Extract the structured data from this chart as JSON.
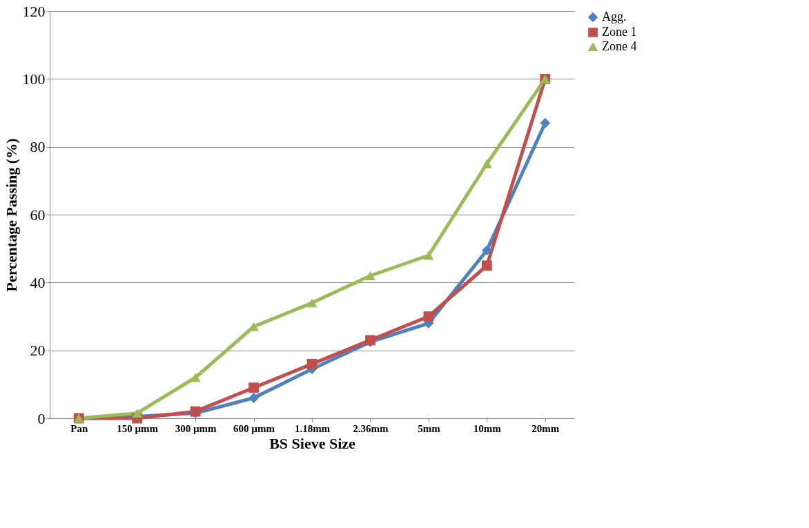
{
  "chart_data": {
    "type": "line",
    "xlabel": "BS Sieve Size",
    "ylabel": "Percentage Passing (%)",
    "categories": [
      "Pan",
      "150 µmm",
      "300 µmm",
      "600 µmm",
      "1.18mm",
      "2.36mm",
      "5mm",
      "10mm",
      "20mm"
    ],
    "series": [
      {
        "name": "Agg.",
        "color": "#4f81bd",
        "marker": "diamond",
        "values": [
          0,
          0.5,
          1.5,
          6,
          14.5,
          22.5,
          28,
          49.5,
          87
        ]
      },
      {
        "name": "Zone 1",
        "color": "#c0504d",
        "marker": "square",
        "values": [
          0,
          0,
          2,
          9,
          16,
          23,
          30,
          45,
          100
        ]
      },
      {
        "name": "Zone 4",
        "color": "#9bbb59",
        "marker": "triangle",
        "values": [
          0,
          1.5,
          12,
          27,
          34,
          42,
          48,
          75,
          100
        ]
      }
    ],
    "ylim": [
      0,
      120
    ],
    "yticks": [
      0,
      20,
      40,
      60,
      80,
      100,
      120
    ],
    "grid": "y",
    "legend": "right",
    "line_style": "solid"
  }
}
